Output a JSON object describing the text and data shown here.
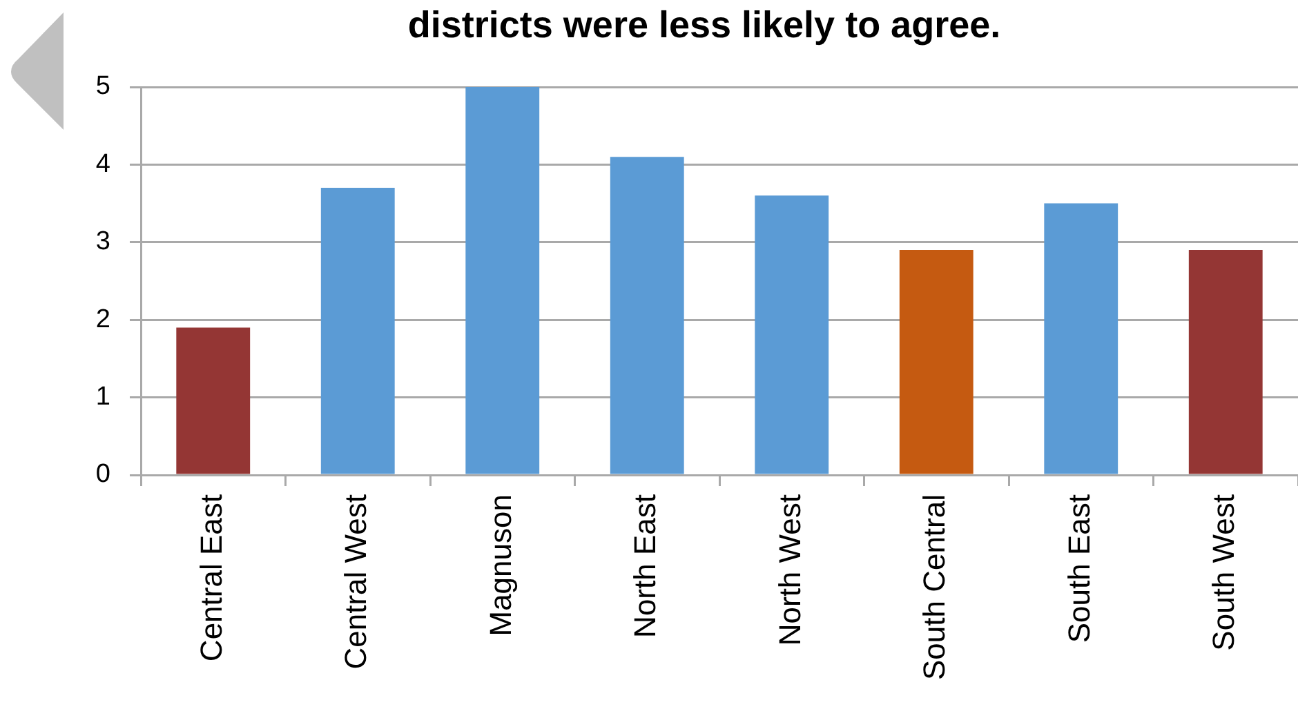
{
  "chart_data": {
    "type": "bar",
    "title": "districts were less likely to agree.",
    "categories": [
      "Central East",
      "Central West",
      "Magnuson",
      "North East",
      "North West",
      "South Central",
      "South East",
      "South West"
    ],
    "values": [
      1.9,
      3.7,
      5,
      4.1,
      3.6,
      2.9,
      3.5,
      2.9
    ],
    "colors": [
      "#943634",
      "#5b9bd5",
      "#5b9bd5",
      "#5b9bd5",
      "#5b9bd5",
      "#c55a11",
      "#5b9bd5",
      "#943634"
    ],
    "ylim": [
      0,
      5
    ],
    "yticks": [
      0,
      1,
      2,
      3,
      4,
      5
    ],
    "grid": "y"
  }
}
